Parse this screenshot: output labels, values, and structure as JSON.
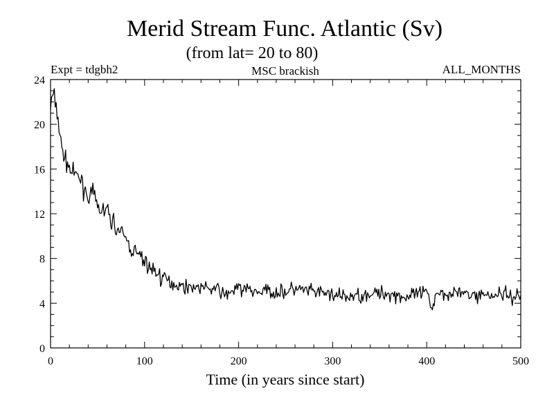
{
  "chart_data": {
    "type": "line",
    "title": "Merid Stream Func. Atlantic (Sv)",
    "subtitle": "(from lat= 20 to 80)",
    "left_label": "Expt = tdgbh2",
    "center_label": "MSC brackish",
    "right_label": "ALL_MONTHS",
    "xlabel": "Time (in years since start)",
    "ylabel": "",
    "xlim": [
      0,
      500
    ],
    "ylim": [
      0,
      24
    ],
    "x_ticks": [
      "0",
      "100",
      "200",
      "300",
      "400",
      "500"
    ],
    "y_ticks": [
      "0",
      "4",
      "8",
      "12",
      "16",
      "20",
      "24"
    ],
    "grid": false,
    "line_color": "#000000",
    "series": [
      {
        "x": [
          0,
          2,
          4,
          6,
          8,
          10,
          12,
          15,
          18,
          20,
          25,
          30,
          35,
          40,
          45,
          50,
          55,
          60,
          65,
          70,
          75,
          80,
          85,
          90,
          95,
          100,
          105,
          110,
          115,
          120,
          125,
          130,
          140,
          150,
          160,
          170,
          180,
          185,
          190,
          200,
          210,
          220,
          230,
          240,
          250,
          260,
          270,
          280,
          290,
          300,
          310,
          320,
          330,
          340,
          350,
          360,
          370,
          380,
          390,
          400,
          405,
          410,
          420,
          430,
          440,
          450,
          460,
          470,
          480,
          490,
          500
        ],
        "y": [
          21.5,
          22.6,
          22.3,
          21.5,
          20.5,
          19.0,
          17.8,
          17.0,
          16.5,
          16.0,
          15.5,
          15.3,
          14.5,
          13.5,
          13.8,
          12.6,
          12.2,
          12.3,
          11.4,
          10.8,
          10.2,
          9.8,
          8.9,
          8.6,
          8.1,
          7.8,
          7.2,
          6.9,
          6.6,
          6.2,
          6.0,
          5.8,
          5.5,
          5.5,
          5.4,
          5.3,
          5.2,
          4.6,
          5.0,
          5.3,
          5.2,
          5.0,
          5.1,
          5.0,
          5.0,
          5.3,
          5.1,
          5.0,
          4.9,
          4.8,
          4.5,
          4.6,
          4.7,
          4.9,
          4.8,
          4.9,
          4.7,
          4.5,
          4.8,
          4.9,
          3.4,
          5.0,
          4.9,
          5.0,
          4.8,
          4.7,
          4.8,
          4.7,
          4.9,
          4.6,
          4.7
        ]
      }
    ]
  }
}
